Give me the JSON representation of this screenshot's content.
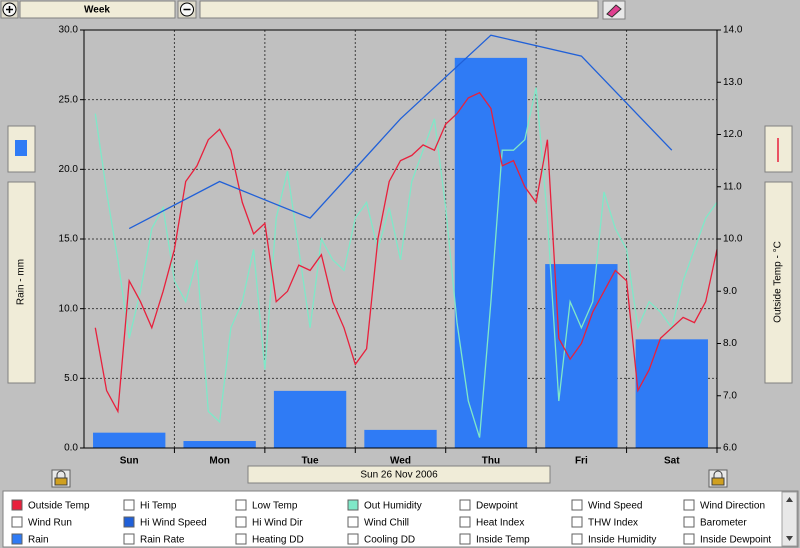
{
  "toolbar": {
    "period": "Week"
  },
  "date_label": "Sun 26 Nov 2006",
  "left_axis_label": "Rain - mm",
  "right_axis_label": "Outside Temp - °C",
  "chart_data": [
    {
      "type": "bar",
      "categories": [
        "Sun",
        "Mon",
        "Tue",
        "Wed",
        "Thu",
        "Fri",
        "Sat"
      ],
      "series": [
        {
          "color": "#2f7bf5",
          "values": [
            1.1,
            0.5,
            4.1,
            1.3,
            28.0,
            13.2,
            7.8
          ]
        }
      ],
      "ylim": [
        0,
        30
      ],
      "yticks": [
        {
          "value": 0,
          "label": "0.0"
        },
        {
          "value": 5,
          "label": "5.0"
        },
        {
          "value": 10,
          "label": "10.0"
        },
        {
          "value": 15,
          "label": "15.0"
        },
        {
          "value": 20,
          "label": "20.0"
        },
        {
          "value": 25,
          "label": "25.0"
        },
        {
          "value": 30,
          "label": "30.0"
        }
      ],
      "grid": true
    },
    {
      "type": "line",
      "xlim": [
        0,
        7
      ],
      "y2lim": [
        6,
        14
      ],
      "y2ticks": [
        {
          "value": 6,
          "label": "6.0"
        },
        {
          "value": 7,
          "label": "7.0"
        },
        {
          "value": 8,
          "label": "8.0"
        },
        {
          "value": 9,
          "label": "9.0"
        },
        {
          "value": 10,
          "label": "10.0"
        },
        {
          "value": 11,
          "label": "11.0"
        },
        {
          "value": 12,
          "label": "12.0"
        },
        {
          "value": 13,
          "label": "13.0"
        },
        {
          "value": 14,
          "label": "14.0"
        }
      ],
      "series": [
        {
          "color": "#7fe8c8",
          "axis": "y2",
          "x": [
            0,
            0.125,
            0.25,
            0.375,
            0.5,
            0.625,
            0.75,
            0.875,
            1,
            1.125,
            1.25,
            1.375,
            1.5,
            1.625,
            1.75,
            1.875,
            2,
            2.125,
            2.25,
            2.375,
            2.5,
            2.625,
            2.75,
            2.875,
            3,
            3.125,
            3.25,
            3.375,
            3.5,
            3.625,
            3.75,
            3.875,
            4,
            4.125,
            4.25,
            4.375,
            4.5,
            4.625,
            4.75,
            4.875,
            5,
            5.125,
            5.25,
            5.375,
            5.5,
            5.625,
            5.75,
            5.875,
            6,
            6.125,
            6.25,
            6.375,
            6.5,
            6.625,
            6.75,
            6.875,
            7
          ],
          "values": [
            null,
            12.4,
            10.9,
            9.6,
            8.1,
            9.0,
            10.2,
            10.6,
            9.2,
            8.8,
            9.6,
            6.7,
            6.5,
            8.3,
            8.8,
            9.8,
            7.5,
            10.4,
            11.3,
            9.8,
            8.3,
            10.0,
            9.6,
            9.4,
            10.4,
            10.7,
            9.8,
            10.6,
            9.6,
            11.1,
            11.7,
            12.3,
            10.6,
            8.4,
            6.9,
            6.2,
            8.8,
            11.7,
            11.7,
            11.9,
            12.9,
            10.4,
            6.9,
            8.8,
            8.3,
            8.8,
            10.9,
            10.2,
            9.8,
            8.3,
            8.8,
            8.6,
            8.3,
            9.2,
            9.8,
            10.4,
            10.7
          ]
        },
        {
          "color": "#e8203c",
          "axis": "y2",
          "x": [
            0,
            0.125,
            0.25,
            0.375,
            0.5,
            0.625,
            0.75,
            0.875,
            1,
            1.125,
            1.25,
            1.375,
            1.5,
            1.625,
            1.75,
            1.875,
            2,
            2.125,
            2.25,
            2.375,
            2.5,
            2.625,
            2.75,
            2.875,
            3,
            3.125,
            3.25,
            3.375,
            3.5,
            3.625,
            3.75,
            3.875,
            4,
            4.125,
            4.25,
            4.375,
            4.5,
            4.625,
            4.75,
            4.875,
            5,
            5.125,
            5.25,
            5.375,
            5.5,
            5.625,
            5.75,
            5.875,
            6,
            6.125,
            6.25,
            6.375,
            6.5,
            6.625,
            6.75,
            6.875,
            7
          ],
          "values": [
            null,
            8.3,
            7.1,
            6.7,
            9.2,
            8.8,
            8.3,
            9.0,
            9.8,
            11.1,
            11.4,
            11.9,
            12.1,
            11.7,
            10.7,
            10.1,
            10.3,
            8.8,
            9.0,
            9.5,
            9.4,
            9.7,
            8.8,
            8.3,
            7.6,
            7.9,
            10.0,
            11.1,
            11.5,
            11.6,
            11.8,
            11.7,
            12.2,
            12.4,
            12.7,
            12.8,
            12.5,
            11.4,
            11.5,
            11.0,
            10.7,
            11.9,
            8.1,
            7.7,
            8.0,
            8.6,
            9.0,
            9.4,
            9.2,
            7.1,
            7.5,
            8.1,
            8.3,
            8.5,
            8.4,
            8.8,
            9.8
          ]
        },
        {
          "color": "#2060d8",
          "axis": "y2",
          "x": [
            0.5,
            1.5,
            2.5,
            3.5,
            4.5,
            5.5,
            6.5
          ],
          "values": [
            10.2,
            11.1,
            10.4,
            12.3,
            13.9,
            13.5,
            11.7
          ]
        }
      ]
    }
  ],
  "legend": [
    {
      "label": "Outside Temp",
      "color": "#e8203c"
    },
    {
      "label": "Hi Temp"
    },
    {
      "label": "Low Temp"
    },
    {
      "label": "Out Humidity",
      "color": "#7fe8c8"
    },
    {
      "label": "Dewpoint"
    },
    {
      "label": "Wind Speed"
    },
    {
      "label": "Wind Direction"
    },
    {
      "label": "Wind Run"
    },
    {
      "label": "Hi Wind Speed",
      "color": "#2060d8"
    },
    {
      "label": "Hi Wind Dir"
    },
    {
      "label": "Wind Chill"
    },
    {
      "label": "Heat Index"
    },
    {
      "label": "THW Index"
    },
    {
      "label": "Barometer"
    },
    {
      "label": "Rain",
      "color": "#2f7bf5"
    },
    {
      "label": "Rain Rate"
    },
    {
      "label": "Heating DD"
    },
    {
      "label": "Cooling DD"
    },
    {
      "label": "Inside Temp"
    },
    {
      "label": "Inside Humidity"
    },
    {
      "label": "Inside Dewpoint"
    }
  ]
}
